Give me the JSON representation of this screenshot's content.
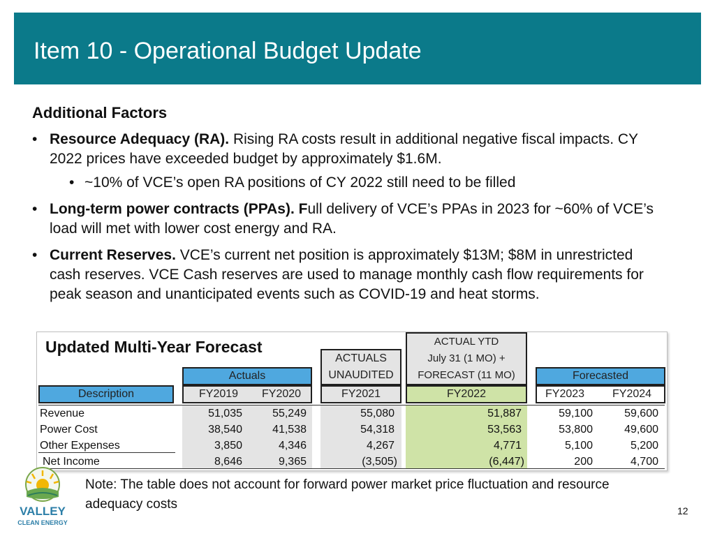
{
  "slide": {
    "title": "Item 10 - Operational Budget Update",
    "page_number": "12",
    "accent_color": "#0b7a8a"
  },
  "content": {
    "heading": "Additional Factors",
    "bullets": [
      {
        "lead": "Resource Adequacy (RA).",
        "text": "  Rising RA costs result in additional negative fiscal impacts. CY 2022 prices have exceeded budget by approximately $1.6M."
      },
      {
        "sub": "~10% of VCE’s open RA positions of CY 2022 still need to be filled"
      },
      {
        "lead": "Long-term power contracts (PPAs). F",
        "text": "ull delivery of VCE’s PPAs in 2023 for ~60% of VCE’s load will met with lower cost energy and RA."
      },
      {
        "lead": "Current Reserves.",
        "text": " VCE’s current net position is approximately $13M; $8M in unrestricted cash reserves. VCE Cash reserves are used to manage monthly cash flow requirements for peak season and unanticipated events such as COVID-19 and heat storms."
      }
    ]
  },
  "forecast": {
    "title": "Updated Multi-Year Forecast",
    "groups": {
      "actuals": "Actuals",
      "actuals_unaudited": "ACTUALS\nUNAUDITED",
      "actual_ytd": "ACTUAL YTD\nJuly 31 (1 MO) +\nFORECAST (11 MO)",
      "forecasted": "Forecasted"
    },
    "columns": [
      "Description",
      "FY2019",
      "FY2020",
      "FY2021",
      "FY2022",
      "FY2023",
      "FY2024"
    ],
    "rows": [
      {
        "label": "Revenue",
        "values": [
          "51,035",
          "55,249",
          "55,080",
          "51,887",
          "59,100",
          "59,600"
        ]
      },
      {
        "label": "Power Cost",
        "values": [
          "38,540",
          "41,538",
          "54,318",
          "53,563",
          "53,800",
          "49,600"
        ]
      },
      {
        "label": "Other Expenses",
        "values": [
          "3,850",
          "4,346",
          "4,267",
          "4,771",
          "5,100",
          "5,200"
        ]
      },
      {
        "label": "Net Income",
        "values": [
          "8,646",
          "9,365",
          "(3,505)",
          "(6,447)",
          "200",
          "4,700"
        ]
      }
    ]
  },
  "note": "Note: The table does not account for forward power market price fluctuation and resource adequacy costs",
  "logo": {
    "line1": "VALLEY",
    "line2": "CLEAN ENERGY"
  }
}
